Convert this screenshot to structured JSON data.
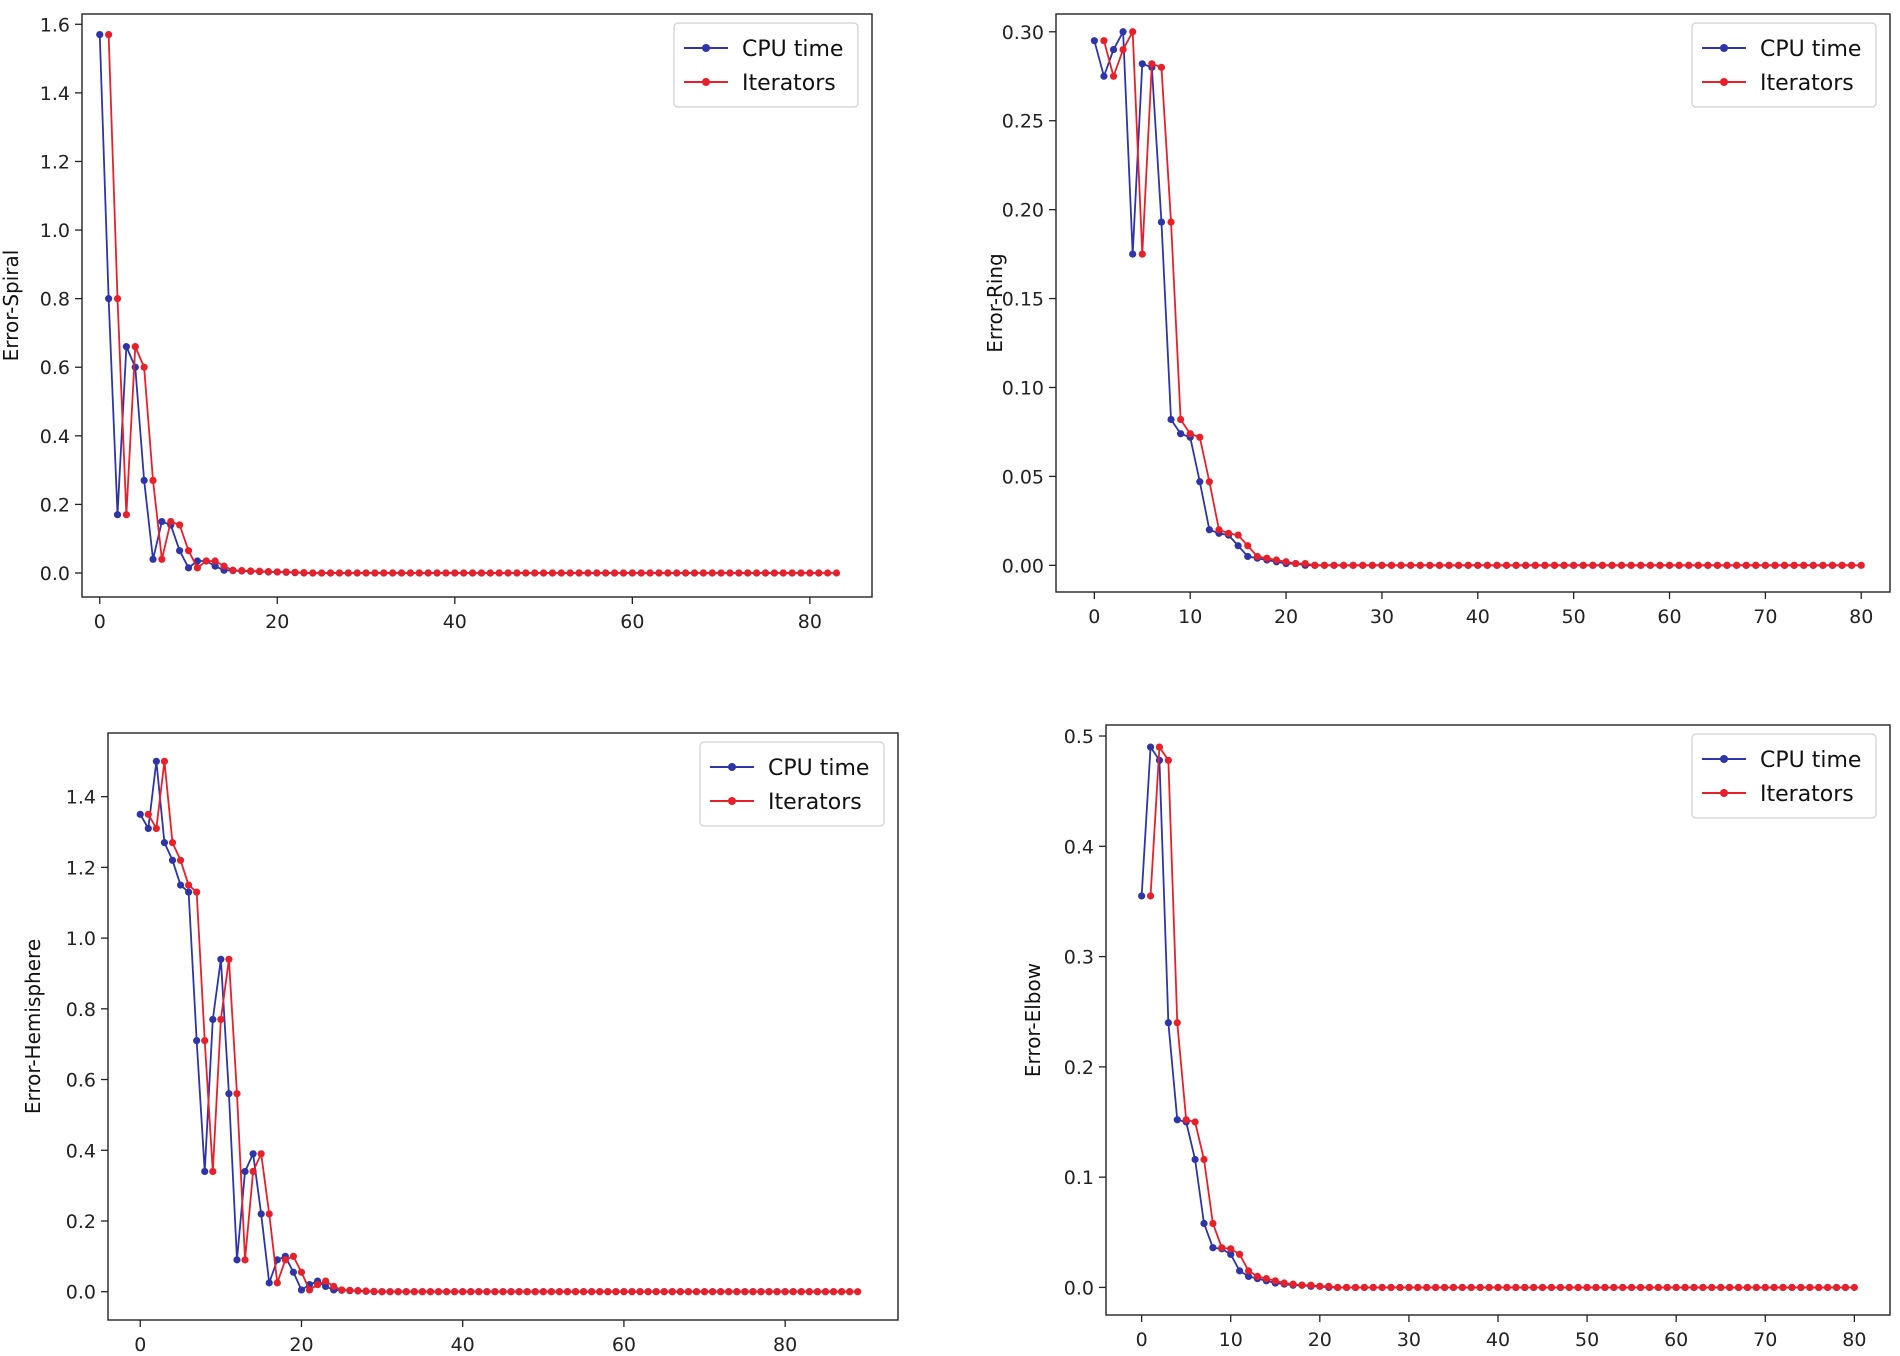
{
  "chart_data": [
    {
      "type": "line",
      "title": "",
      "xlabel": "",
      "ylabel": "Error-Spiral",
      "xlim": [
        -2,
        87
      ],
      "ylim": [
        -0.07,
        1.63
      ],
      "xticks": [
        0,
        20,
        40,
        60,
        80
      ],
      "yticks": [
        0.0,
        0.2,
        0.4,
        0.6,
        0.8,
        1.0,
        1.2,
        1.4,
        1.6
      ],
      "ytick_decimals": 1,
      "legend": "top-right",
      "series": [
        {
          "name": "CPU time",
          "color": "#2d35a8",
          "x_start": 0,
          "values": [
            1.57,
            0.8,
            0.17,
            0.66,
            0.6,
            0.27,
            0.04,
            0.15,
            0.14,
            0.065,
            0.015,
            0.035,
            0.035,
            0.02,
            0.008,
            0.007,
            0.006,
            0.005,
            0.004,
            0.003,
            0.003,
            0.002,
            0.001,
            0,
            0,
            0,
            0,
            0,
            0,
            0,
            0,
            0,
            0,
            0,
            0,
            0,
            0,
            0,
            0,
            0,
            0,
            0,
            0,
            0,
            0,
            0,
            0,
            0,
            0,
            0,
            0,
            0,
            0,
            0,
            0,
            0,
            0,
            0,
            0,
            0,
            0,
            0,
            0,
            0,
            0,
            0,
            0,
            0,
            0,
            0,
            0,
            0,
            0,
            0,
            0,
            0,
            0,
            0,
            0,
            0,
            0,
            0
          ]
        },
        {
          "name": "Iterators",
          "color": "#e8202a",
          "x_start": 1,
          "values": [
            1.57,
            0.8,
            0.17,
            0.66,
            0.6,
            0.27,
            0.04,
            0.15,
            0.14,
            0.065,
            0.015,
            0.035,
            0.035,
            0.02,
            0.008,
            0.007,
            0.006,
            0.005,
            0.004,
            0.003,
            0.003,
            0.002,
            0.001,
            0,
            0,
            0,
            0,
            0,
            0,
            0,
            0,
            0,
            0,
            0,
            0,
            0,
            0,
            0,
            0,
            0,
            0,
            0,
            0,
            0,
            0,
            0,
            0,
            0,
            0,
            0,
            0,
            0,
            0,
            0,
            0,
            0,
            0,
            0,
            0,
            0,
            0,
            0,
            0,
            0,
            0,
            0,
            0,
            0,
            0,
            0,
            0,
            0,
            0,
            0,
            0,
            0,
            0,
            0,
            0,
            0,
            0,
            0,
            0
          ]
        }
      ]
    },
    {
      "type": "line",
      "title": "",
      "xlabel": "",
      "ylabel": "Error-Ring",
      "xlim": [
        -4,
        83
      ],
      "ylim": [
        -0.015,
        0.31
      ],
      "xticks": [
        0,
        10,
        20,
        30,
        40,
        50,
        60,
        70,
        80
      ],
      "yticks": [
        0.0,
        0.05,
        0.1,
        0.15,
        0.2,
        0.25,
        0.3
      ],
      "ytick_decimals": 2,
      "legend": "top-right",
      "series": [
        {
          "name": "CPU time",
          "color": "#2d35a8",
          "x_start": 0,
          "values": [
            0.295,
            0.275,
            0.29,
            0.3,
            0.175,
            0.282,
            0.28,
            0.193,
            0.082,
            0.074,
            0.072,
            0.047,
            0.02,
            0.018,
            0.017,
            0.011,
            0.005,
            0.004,
            0.003,
            0.002,
            0.001,
            0.001,
            0,
            0,
            0,
            0,
            0,
            0,
            0,
            0,
            0,
            0,
            0,
            0,
            0,
            0,
            0,
            0,
            0,
            0,
            0,
            0,
            0,
            0,
            0,
            0,
            0,
            0,
            0,
            0,
            0,
            0,
            0,
            0,
            0,
            0,
            0,
            0,
            0,
            0,
            0,
            0,
            0,
            0,
            0,
            0,
            0,
            0,
            0,
            0,
            0,
            0,
            0,
            0,
            0,
            0,
            0,
            0,
            0,
            0
          ]
        },
        {
          "name": "Iterators",
          "color": "#e8202a",
          "x_start": 1,
          "values": [
            0.295,
            0.275,
            0.29,
            0.3,
            0.175,
            0.282,
            0.28,
            0.193,
            0.082,
            0.074,
            0.072,
            0.047,
            0.02,
            0.018,
            0.017,
            0.011,
            0.005,
            0.004,
            0.003,
            0.002,
            0.001,
            0.001,
            0,
            0,
            0,
            0,
            0,
            0,
            0,
            0,
            0,
            0,
            0,
            0,
            0,
            0,
            0,
            0,
            0,
            0,
            0,
            0,
            0,
            0,
            0,
            0,
            0,
            0,
            0,
            0,
            0,
            0,
            0,
            0,
            0,
            0,
            0,
            0,
            0,
            0,
            0,
            0,
            0,
            0,
            0,
            0,
            0,
            0,
            0,
            0,
            0,
            0,
            0,
            0,
            0,
            0,
            0,
            0,
            0,
            0
          ]
        }
      ]
    },
    {
      "type": "line",
      "title": "",
      "xlabel": "",
      "ylabel": "Error-Hemisphere",
      "xlim": [
        -4,
        94
      ],
      "ylim": [
        -0.08,
        1.58
      ],
      "xticks": [
        0,
        20,
        40,
        60,
        80
      ],
      "yticks": [
        0.0,
        0.2,
        0.4,
        0.6,
        0.8,
        1.0,
        1.2,
        1.4
      ],
      "ytick_decimals": 1,
      "legend": "top-right",
      "series": [
        {
          "name": "CPU time",
          "color": "#2d35a8",
          "x_start": 0,
          "values": [
            1.35,
            1.31,
            1.5,
            1.27,
            1.22,
            1.15,
            1.13,
            0.71,
            0.34,
            0.77,
            0.94,
            0.56,
            0.09,
            0.34,
            0.39,
            0.22,
            0.025,
            0.09,
            0.1,
            0.055,
            0.005,
            0.02,
            0.03,
            0.015,
            0.005,
            0.004,
            0.003,
            0.002,
            0.001,
            0,
            0,
            0,
            0,
            0,
            0,
            0,
            0,
            0,
            0,
            0,
            0,
            0,
            0,
            0,
            0,
            0,
            0,
            0,
            0,
            0,
            0,
            0,
            0,
            0,
            0,
            0,
            0,
            0,
            0,
            0,
            0,
            0,
            0,
            0,
            0,
            0,
            0,
            0,
            0,
            0,
            0,
            0,
            0,
            0,
            0,
            0,
            0,
            0,
            0,
            0,
            0,
            0,
            0,
            0,
            0,
            0,
            0,
            0,
            0
          ]
        },
        {
          "name": "Iterators",
          "color": "#e8202a",
          "x_start": 1,
          "values": [
            1.35,
            1.31,
            1.5,
            1.27,
            1.22,
            1.15,
            1.13,
            0.71,
            0.34,
            0.77,
            0.94,
            0.56,
            0.09,
            0.34,
            0.39,
            0.22,
            0.025,
            0.09,
            0.1,
            0.055,
            0.005,
            0.02,
            0.03,
            0.015,
            0.005,
            0.004,
            0.003,
            0.002,
            0.001,
            0,
            0,
            0,
            0,
            0,
            0,
            0,
            0,
            0,
            0,
            0,
            0,
            0,
            0,
            0,
            0,
            0,
            0,
            0,
            0,
            0,
            0,
            0,
            0,
            0,
            0,
            0,
            0,
            0,
            0,
            0,
            0,
            0,
            0,
            0,
            0,
            0,
            0,
            0,
            0,
            0,
            0,
            0,
            0,
            0,
            0,
            0,
            0,
            0,
            0,
            0,
            0,
            0,
            0,
            0,
            0,
            0,
            0,
            0,
            0
          ]
        }
      ]
    },
    {
      "type": "line",
      "title": "",
      "xlabel": "",
      "ylabel": "Error-Elbow",
      "xlim": [
        -4,
        84
      ],
      "ylim": [
        -0.025,
        0.51
      ],
      "xticks": [
        0,
        10,
        20,
        30,
        40,
        50,
        60,
        70,
        80
      ],
      "yticks": [
        0.0,
        0.1,
        0.2,
        0.3,
        0.4,
        0.5
      ],
      "ytick_decimals": 1,
      "legend": "top-right",
      "series": [
        {
          "name": "CPU time",
          "color": "#2d35a8",
          "x_start": 0,
          "values": [
            0.355,
            0.49,
            0.478,
            0.24,
            0.152,
            0.15,
            0.116,
            0.058,
            0.036,
            0.035,
            0.03,
            0.015,
            0.01,
            0.008,
            0.006,
            0.004,
            0.003,
            0.002,
            0.002,
            0.001,
            0.001,
            0,
            0,
            0,
            0,
            0,
            0,
            0,
            0,
            0,
            0,
            0,
            0,
            0,
            0,
            0,
            0,
            0,
            0,
            0,
            0,
            0,
            0,
            0,
            0,
            0,
            0,
            0,
            0,
            0,
            0,
            0,
            0,
            0,
            0,
            0,
            0,
            0,
            0,
            0,
            0,
            0,
            0,
            0,
            0,
            0,
            0,
            0,
            0,
            0,
            0,
            0,
            0,
            0,
            0,
            0,
            0,
            0,
            0,
            0
          ]
        },
        {
          "name": "Iterators",
          "color": "#e8202a",
          "x_start": 1,
          "values": [
            0.355,
            0.49,
            0.478,
            0.24,
            0.152,
            0.15,
            0.116,
            0.058,
            0.036,
            0.035,
            0.03,
            0.015,
            0.01,
            0.008,
            0.006,
            0.004,
            0.003,
            0.002,
            0.002,
            0.001,
            0.001,
            0,
            0,
            0,
            0,
            0,
            0,
            0,
            0,
            0,
            0,
            0,
            0,
            0,
            0,
            0,
            0,
            0,
            0,
            0,
            0,
            0,
            0,
            0,
            0,
            0,
            0,
            0,
            0,
            0,
            0,
            0,
            0,
            0,
            0,
            0,
            0,
            0,
            0,
            0,
            0,
            0,
            0,
            0,
            0,
            0,
            0,
            0,
            0,
            0,
            0,
            0,
            0,
            0,
            0,
            0,
            0,
            0,
            0,
            0
          ]
        }
      ]
    }
  ]
}
